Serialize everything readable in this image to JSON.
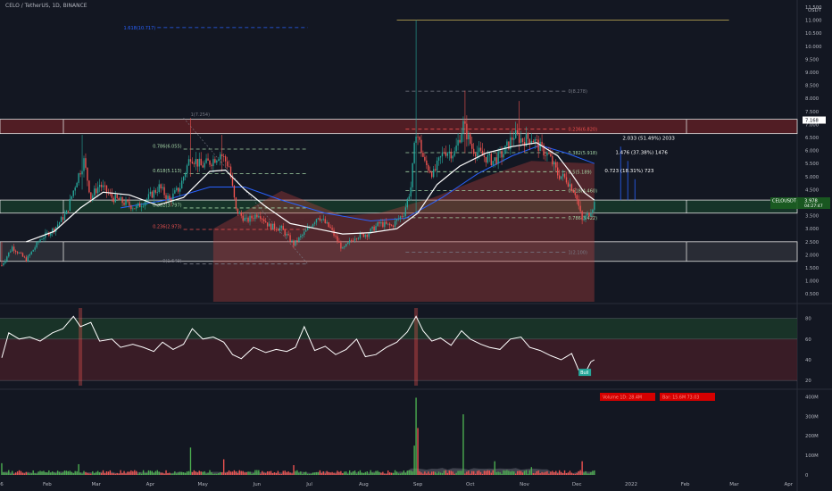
{
  "header": {
    "symbol": "CELO / TetherUS",
    "interval": "1D",
    "exchange": "BINANCE"
  },
  "colors": {
    "background": "#131722",
    "up": "#26a69a",
    "down": "#ef5350",
    "volume_up": "#4caf50",
    "volume_down": "#ef5350",
    "fib_green": "#a5d6a7",
    "fib_red": "#ef5350",
    "sma": "#ffffff",
    "ema": "#2962ff",
    "zone_red": "#5d1f24",
    "zone_green": "#173a2a",
    "zone_grey": "#2e3038",
    "rsi_line": "#ffffff",
    "accent_blue": "#2962ff"
  },
  "chart_data": [
    {
      "type": "candlestick",
      "name": "price",
      "y_unit": "USDT",
      "ylim": [
        0.2,
        11.5
      ],
      "y_ticks": [
        "0.500",
        "1.000",
        "1.500",
        "2.000",
        "2.500",
        "3.000",
        "3.500",
        "4.000",
        "4.500",
        "5.000",
        "5.500",
        "6.000",
        "6.500",
        "7.000",
        "7.500",
        "8.000",
        "8.500",
        "9.000",
        "9.500",
        "10.000",
        "10.500",
        "11.000",
        "11.500"
      ],
      "y_tick_values": [
        0.5,
        1,
        1.5,
        2,
        2.5,
        3,
        3.5,
        4,
        4.5,
        5,
        5.5,
        6,
        6.5,
        7,
        7.5,
        8,
        8.5,
        9,
        9.5,
        10,
        10.5,
        11,
        11.5
      ],
      "x_ticks": [
        "6",
        "Feb",
        "Mar",
        "Apr",
        "May",
        "Jun",
        "Jul",
        "Aug",
        "Sep",
        "Oct",
        "Nov",
        "Dec",
        "2022",
        "Feb",
        "Mar",
        "Apr"
      ],
      "x_tick_dates": [
        "2021-01-06",
        "2021-02-01",
        "2021-03-01",
        "2021-04-01",
        "2021-05-01",
        "2021-06-01",
        "2021-07-01",
        "2021-08-01",
        "2021-09-01",
        "2021-10-01",
        "2021-11-01",
        "2021-12-01",
        "2022-01-01",
        "2022-02-01",
        "2022-03-01",
        "2022-04-01"
      ],
      "x_range": [
        "2021-01-05",
        "2022-04-06"
      ],
      "last_price": "3.978",
      "last_price_label": "CELOUSDT",
      "countdown": "04:27:47",
      "ref_price": "7.168",
      "close_path": [
        [
          "2021-01-06",
          1.6
        ],
        [
          "2021-01-12",
          2.3
        ],
        [
          "2021-01-20",
          1.8
        ],
        [
          "2021-01-28",
          2.6
        ],
        [
          "2021-02-05",
          3.0
        ],
        [
          "2021-02-12",
          3.6
        ],
        [
          "2021-02-18",
          4.9
        ],
        [
          "2021-02-22",
          5.6
        ],
        [
          "2021-02-26",
          4.2
        ],
        [
          "2021-03-03",
          4.7
        ],
        [
          "2021-03-10",
          4.2
        ],
        [
          "2021-03-17",
          4.0
        ],
        [
          "2021-03-24",
          3.8
        ],
        [
          "2021-03-31",
          4.2
        ],
        [
          "2021-04-06",
          4.6
        ],
        [
          "2021-04-12",
          4.1
        ],
        [
          "2021-04-18",
          4.6
        ],
        [
          "2021-04-24",
          5.8
        ],
        [
          "2021-04-30",
          5.4
        ],
        [
          "2021-05-06",
          5.6
        ],
        [
          "2021-05-11",
          5.9
        ],
        [
          "2021-05-16",
          5.4
        ],
        [
          "2021-05-20",
          3.7
        ],
        [
          "2021-05-26",
          3.3
        ],
        [
          "2021-06-02",
          3.6
        ],
        [
          "2021-06-08",
          3.1
        ],
        [
          "2021-06-15",
          3.0
        ],
        [
          "2021-06-22",
          2.4
        ],
        [
          "2021-06-29",
          2.9
        ],
        [
          "2021-07-06",
          3.5
        ],
        [
          "2021-07-13",
          3.0
        ],
        [
          "2021-07-20",
          2.2
        ],
        [
          "2021-07-27",
          2.7
        ],
        [
          "2021-08-03",
          2.8
        ],
        [
          "2021-08-10",
          3.2
        ],
        [
          "2021-08-17",
          3.1
        ],
        [
          "2021-08-24",
          3.6
        ],
        [
          "2021-08-28",
          4.6
        ],
        [
          "2021-08-31",
          6.8
        ],
        [
          "2021-09-05",
          5.5
        ],
        [
          "2021-09-10",
          5.1
        ],
        [
          "2021-09-16",
          6.0
        ],
        [
          "2021-09-22",
          5.9
        ],
        [
          "2021-09-27",
          7.0
        ],
        [
          "2021-10-02",
          6.1
        ],
        [
          "2021-10-08",
          5.8
        ],
        [
          "2021-10-14",
          5.6
        ],
        [
          "2021-10-20",
          5.9
        ],
        [
          "2021-10-26",
          6.6
        ],
        [
          "2021-10-31",
          6.4
        ],
        [
          "2021-11-05",
          6.5
        ],
        [
          "2021-11-10",
          6.1
        ],
        [
          "2021-11-15",
          5.8
        ],
        [
          "2021-11-20",
          5.1
        ],
        [
          "2021-11-25",
          4.9
        ],
        [
          "2021-11-30",
          4.4
        ],
        [
          "2021-12-04",
          3.3
        ],
        [
          "2021-12-08",
          3.6
        ],
        [
          "2021-12-11",
          3.978
        ]
      ],
      "spikes": [
        {
          "date": "2021-02-21",
          "high": 6.6,
          "low": 4.5
        },
        {
          "date": "2021-04-24",
          "high": 7.25,
          "low": 5.0
        },
        {
          "date": "2021-05-12",
          "high": 6.6,
          "low": 5.2
        },
        {
          "date": "2021-08-31",
          "high": 11.0,
          "low": 3.6
        },
        {
          "date": "2021-09-28",
          "high": 8.3,
          "low": 5.9
        },
        {
          "date": "2021-10-29",
          "high": 7.9,
          "low": 6.0
        },
        {
          "date": "2021-01-06",
          "high": 2.5,
          "low": 1.55
        }
      ],
      "sma_path": [
        [
          "2021-01-20",
          2.5
        ],
        [
          "2021-02-05",
          2.9
        ],
        [
          "2021-02-20",
          3.8
        ],
        [
          "2021-03-05",
          4.4
        ],
        [
          "2021-03-20",
          4.3
        ],
        [
          "2021-04-05",
          3.9
        ],
        [
          "2021-04-20",
          4.2
        ],
        [
          "2021-05-05",
          5.2
        ],
        [
          "2021-05-14",
          5.25
        ],
        [
          "2021-05-25",
          4.5
        ],
        [
          "2021-06-05",
          3.9
        ],
        [
          "2021-06-20",
          3.2
        ],
        [
          "2021-07-05",
          3.0
        ],
        [
          "2021-07-20",
          2.8
        ],
        [
          "2021-08-05",
          2.85
        ],
        [
          "2021-08-20",
          3.0
        ],
        [
          "2021-09-01",
          3.6
        ],
        [
          "2021-09-12",
          4.7
        ],
        [
          "2021-09-25",
          5.4
        ],
        [
          "2021-10-10",
          5.9
        ],
        [
          "2021-10-25",
          6.15
        ],
        [
          "2021-11-08",
          6.3
        ],
        [
          "2021-11-20",
          5.8
        ],
        [
          "2021-11-28",
          5.1
        ],
        [
          "2021-12-05",
          4.4
        ],
        [
          "2021-12-11",
          4.1
        ]
      ],
      "ema_path": [
        [
          "2021-03-15",
          3.8
        ],
        [
          "2021-04-10",
          4.1
        ],
        [
          "2021-05-05",
          4.6
        ],
        [
          "2021-05-25",
          4.6
        ],
        [
          "2021-06-15",
          4.1
        ],
        [
          "2021-07-10",
          3.6
        ],
        [
          "2021-08-05",
          3.3
        ],
        [
          "2021-08-25",
          3.4
        ],
        [
          "2021-09-15",
          4.2
        ],
        [
          "2021-10-05",
          5.1
        ],
        [
          "2021-10-25",
          5.8
        ],
        [
          "2021-11-10",
          6.2
        ],
        [
          "2021-11-25",
          5.9
        ],
        [
          "2021-12-11",
          5.5
        ]
      ],
      "annotations": {
        "fib_top": "1.618(10.717)",
        "fib_left_top": "1(7.254)",
        "fib_left": [
          {
            "label": "0.786(6.055)",
            "price": 6.055
          },
          {
            "label": "0.618(5.113)",
            "price": 5.113
          },
          {
            "label": "0.382(3.797)",
            "price": 3.797
          },
          {
            "label": "0.236(2.973)",
            "price": 2.973
          },
          {
            "label": "0(1.649)",
            "price": 1.649
          }
        ],
        "fib_right": [
          {
            "label": "0(8.278)",
            "price": 8.278
          },
          {
            "label": "0.236(6.820)",
            "price": 6.82
          },
          {
            "label": "0.382(5.918)",
            "price": 5.918
          },
          {
            "label": "0.5(5.189)",
            "price": 5.189
          },
          {
            "label": "0.618(4.460)",
            "price": 4.46
          },
          {
            "label": "0.786(3.422)",
            "price": 3.422
          },
          {
            "label": "1(2.100)",
            "price": 2.1
          }
        ],
        "targets": [
          {
            "label": "2.033 (51.49%) 2033",
            "price": 6.35
          },
          {
            "label": "1.476 (37.38%) 1476",
            "price": 5.8
          },
          {
            "label": "0.723 (18.31%) 723",
            "price": 5.1
          }
        ],
        "zones": [
          {
            "name": "resistance",
            "top": 7.2,
            "bottom": 6.65
          },
          {
            "name": "support",
            "top": 4.1,
            "bottom": 3.6
          },
          {
            "name": "base",
            "top": 2.5,
            "bottom": 1.75
          }
        ]
      }
    },
    {
      "type": "line",
      "name": "RSI",
      "ylim": [
        15,
        90
      ],
      "y_ticks": [
        "20",
        "40",
        "60",
        "80"
      ],
      "y_tick_values": [
        20,
        40,
        60,
        80
      ],
      "bands": {
        "upper": 80,
        "mid": 60,
        "lower": 20
      },
      "path": [
        [
          "2021-01-06",
          42
        ],
        [
          "2021-01-10",
          66
        ],
        [
          "2021-01-16",
          60
        ],
        [
          "2021-01-22",
          62
        ],
        [
          "2021-01-28",
          58
        ],
        [
          "2021-02-04",
          66
        ],
        [
          "2021-02-10",
          70
        ],
        [
          "2021-02-16",
          82
        ],
        [
          "2021-02-20",
          72
        ],
        [
          "2021-02-26",
          76
        ],
        [
          "2021-03-03",
          58
        ],
        [
          "2021-03-10",
          60
        ],
        [
          "2021-03-15",
          52
        ],
        [
          "2021-03-22",
          55
        ],
        [
          "2021-03-28",
          52
        ],
        [
          "2021-04-03",
          48
        ],
        [
          "2021-04-08",
          57
        ],
        [
          "2021-04-14",
          50
        ],
        [
          "2021-04-20",
          55
        ],
        [
          "2021-04-25",
          70
        ],
        [
          "2021-05-01",
          60
        ],
        [
          "2021-05-07",
          62
        ],
        [
          "2021-05-13",
          57
        ],
        [
          "2021-05-18",
          45
        ],
        [
          "2021-05-23",
          41
        ],
        [
          "2021-05-30",
          52
        ],
        [
          "2021-06-06",
          47
        ],
        [
          "2021-06-12",
          50
        ],
        [
          "2021-06-18",
          48
        ],
        [
          "2021-06-23",
          52
        ],
        [
          "2021-06-28",
          72
        ],
        [
          "2021-07-04",
          49
        ],
        [
          "2021-07-10",
          53
        ],
        [
          "2021-07-16",
          45
        ],
        [
          "2021-07-22",
          50
        ],
        [
          "2021-07-28",
          60
        ],
        [
          "2021-08-02",
          43
        ],
        [
          "2021-08-08",
          45
        ],
        [
          "2021-08-14",
          52
        ],
        [
          "2021-08-20",
          57
        ],
        [
          "2021-08-26",
          67
        ],
        [
          "2021-08-31",
          82
        ],
        [
          "2021-09-04",
          68
        ],
        [
          "2021-09-09",
          58
        ],
        [
          "2021-09-14",
          61
        ],
        [
          "2021-09-20",
          54
        ],
        [
          "2021-09-26",
          68
        ],
        [
          "2021-10-01",
          60
        ],
        [
          "2021-10-07",
          55
        ],
        [
          "2021-10-12",
          52
        ],
        [
          "2021-10-18",
          50
        ],
        [
          "2021-10-24",
          60
        ],
        [
          "2021-10-30",
          62
        ],
        [
          "2021-11-04",
          52
        ],
        [
          "2021-11-10",
          49
        ],
        [
          "2021-11-16",
          44
        ],
        [
          "2021-11-22",
          40
        ],
        [
          "2021-11-28",
          46
        ],
        [
          "2021-12-02",
          30
        ],
        [
          "2021-12-06",
          28
        ],
        [
          "2021-12-09",
          38
        ],
        [
          "2021-12-11",
          40
        ]
      ],
      "marker": "Bull"
    },
    {
      "type": "bar",
      "name": "Volume",
      "ylim": [
        0,
        420
      ],
      "y_unit": "M",
      "y_ticks": [
        "0",
        "100M",
        "200M",
        "300M",
        "400M"
      ],
      "y_tick_values": [
        0,
        100,
        200,
        300,
        400
      ],
      "spikes": [
        {
          "date": "2021-01-06",
          "value": 60
        },
        {
          "date": "2021-02-19",
          "value": 55
        },
        {
          "date": "2021-04-24",
          "value": 140
        },
        {
          "date": "2021-05-13",
          "value": 80
        },
        {
          "date": "2021-06-22",
          "value": 50
        },
        {
          "date": "2021-08-30",
          "value": 150
        },
        {
          "date": "2021-08-31",
          "value": 395
        },
        {
          "date": "2021-09-01",
          "value": 240
        },
        {
          "date": "2021-09-27",
          "value": 310
        },
        {
          "date": "2021-10-15",
          "value": 70
        },
        {
          "date": "2021-11-05",
          "value": 40
        },
        {
          "date": "2021-12-04",
          "value": 70
        }
      ],
      "legend_red": [
        "Volume 1D: 28.4M",
        "Bar: 15.6M 73.03"
      ]
    }
  ]
}
